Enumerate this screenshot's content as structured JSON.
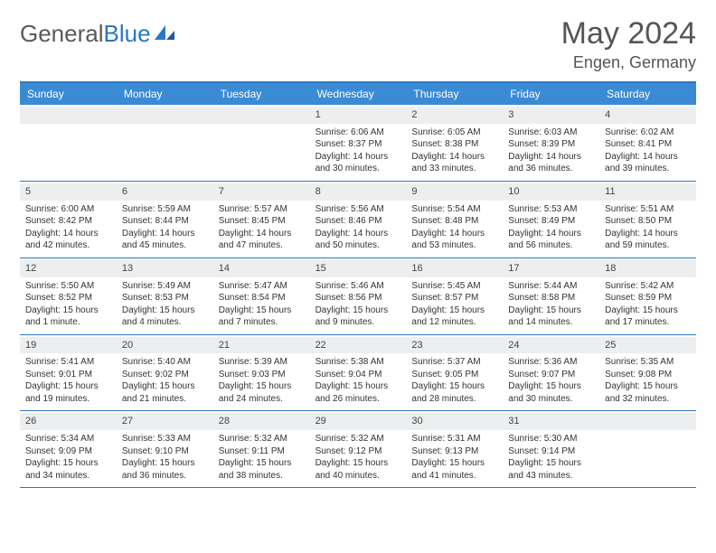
{
  "brand": {
    "part1": "General",
    "part2": "Blue"
  },
  "title": "May 2024",
  "location": "Engen, Germany",
  "colors": {
    "header_bg": "#3b8bd4",
    "header_border": "#2b77c0",
    "daynum_bg": "#eceef0",
    "text": "#333333",
    "brand_gray": "#5a5a5a",
    "brand_blue": "#2b77c0"
  },
  "day_labels": [
    "Sunday",
    "Monday",
    "Tuesday",
    "Wednesday",
    "Thursday",
    "Friday",
    "Saturday"
  ],
  "weeks": [
    [
      {
        "n": "",
        "sr": "",
        "ss": "",
        "dl": ""
      },
      {
        "n": "",
        "sr": "",
        "ss": "",
        "dl": ""
      },
      {
        "n": "",
        "sr": "",
        "ss": "",
        "dl": ""
      },
      {
        "n": "1",
        "sr": "Sunrise: 6:06 AM",
        "ss": "Sunset: 8:37 PM",
        "dl": "Daylight: 14 hours and 30 minutes."
      },
      {
        "n": "2",
        "sr": "Sunrise: 6:05 AM",
        "ss": "Sunset: 8:38 PM",
        "dl": "Daylight: 14 hours and 33 minutes."
      },
      {
        "n": "3",
        "sr": "Sunrise: 6:03 AM",
        "ss": "Sunset: 8:39 PM",
        "dl": "Daylight: 14 hours and 36 minutes."
      },
      {
        "n": "4",
        "sr": "Sunrise: 6:02 AM",
        "ss": "Sunset: 8:41 PM",
        "dl": "Daylight: 14 hours and 39 minutes."
      }
    ],
    [
      {
        "n": "5",
        "sr": "Sunrise: 6:00 AM",
        "ss": "Sunset: 8:42 PM",
        "dl": "Daylight: 14 hours and 42 minutes."
      },
      {
        "n": "6",
        "sr": "Sunrise: 5:59 AM",
        "ss": "Sunset: 8:44 PM",
        "dl": "Daylight: 14 hours and 45 minutes."
      },
      {
        "n": "7",
        "sr": "Sunrise: 5:57 AM",
        "ss": "Sunset: 8:45 PM",
        "dl": "Daylight: 14 hours and 47 minutes."
      },
      {
        "n": "8",
        "sr": "Sunrise: 5:56 AM",
        "ss": "Sunset: 8:46 PM",
        "dl": "Daylight: 14 hours and 50 minutes."
      },
      {
        "n": "9",
        "sr": "Sunrise: 5:54 AM",
        "ss": "Sunset: 8:48 PM",
        "dl": "Daylight: 14 hours and 53 minutes."
      },
      {
        "n": "10",
        "sr": "Sunrise: 5:53 AM",
        "ss": "Sunset: 8:49 PM",
        "dl": "Daylight: 14 hours and 56 minutes."
      },
      {
        "n": "11",
        "sr": "Sunrise: 5:51 AM",
        "ss": "Sunset: 8:50 PM",
        "dl": "Daylight: 14 hours and 59 minutes."
      }
    ],
    [
      {
        "n": "12",
        "sr": "Sunrise: 5:50 AM",
        "ss": "Sunset: 8:52 PM",
        "dl": "Daylight: 15 hours and 1 minute."
      },
      {
        "n": "13",
        "sr": "Sunrise: 5:49 AM",
        "ss": "Sunset: 8:53 PM",
        "dl": "Daylight: 15 hours and 4 minutes."
      },
      {
        "n": "14",
        "sr": "Sunrise: 5:47 AM",
        "ss": "Sunset: 8:54 PM",
        "dl": "Daylight: 15 hours and 7 minutes."
      },
      {
        "n": "15",
        "sr": "Sunrise: 5:46 AM",
        "ss": "Sunset: 8:56 PM",
        "dl": "Daylight: 15 hours and 9 minutes."
      },
      {
        "n": "16",
        "sr": "Sunrise: 5:45 AM",
        "ss": "Sunset: 8:57 PM",
        "dl": "Daylight: 15 hours and 12 minutes."
      },
      {
        "n": "17",
        "sr": "Sunrise: 5:44 AM",
        "ss": "Sunset: 8:58 PM",
        "dl": "Daylight: 15 hours and 14 minutes."
      },
      {
        "n": "18",
        "sr": "Sunrise: 5:42 AM",
        "ss": "Sunset: 8:59 PM",
        "dl": "Daylight: 15 hours and 17 minutes."
      }
    ],
    [
      {
        "n": "19",
        "sr": "Sunrise: 5:41 AM",
        "ss": "Sunset: 9:01 PM",
        "dl": "Daylight: 15 hours and 19 minutes."
      },
      {
        "n": "20",
        "sr": "Sunrise: 5:40 AM",
        "ss": "Sunset: 9:02 PM",
        "dl": "Daylight: 15 hours and 21 minutes."
      },
      {
        "n": "21",
        "sr": "Sunrise: 5:39 AM",
        "ss": "Sunset: 9:03 PM",
        "dl": "Daylight: 15 hours and 24 minutes."
      },
      {
        "n": "22",
        "sr": "Sunrise: 5:38 AM",
        "ss": "Sunset: 9:04 PM",
        "dl": "Daylight: 15 hours and 26 minutes."
      },
      {
        "n": "23",
        "sr": "Sunrise: 5:37 AM",
        "ss": "Sunset: 9:05 PM",
        "dl": "Daylight: 15 hours and 28 minutes."
      },
      {
        "n": "24",
        "sr": "Sunrise: 5:36 AM",
        "ss": "Sunset: 9:07 PM",
        "dl": "Daylight: 15 hours and 30 minutes."
      },
      {
        "n": "25",
        "sr": "Sunrise: 5:35 AM",
        "ss": "Sunset: 9:08 PM",
        "dl": "Daylight: 15 hours and 32 minutes."
      }
    ],
    [
      {
        "n": "26",
        "sr": "Sunrise: 5:34 AM",
        "ss": "Sunset: 9:09 PM",
        "dl": "Daylight: 15 hours and 34 minutes."
      },
      {
        "n": "27",
        "sr": "Sunrise: 5:33 AM",
        "ss": "Sunset: 9:10 PM",
        "dl": "Daylight: 15 hours and 36 minutes."
      },
      {
        "n": "28",
        "sr": "Sunrise: 5:32 AM",
        "ss": "Sunset: 9:11 PM",
        "dl": "Daylight: 15 hours and 38 minutes."
      },
      {
        "n": "29",
        "sr": "Sunrise: 5:32 AM",
        "ss": "Sunset: 9:12 PM",
        "dl": "Daylight: 15 hours and 40 minutes."
      },
      {
        "n": "30",
        "sr": "Sunrise: 5:31 AM",
        "ss": "Sunset: 9:13 PM",
        "dl": "Daylight: 15 hours and 41 minutes."
      },
      {
        "n": "31",
        "sr": "Sunrise: 5:30 AM",
        "ss": "Sunset: 9:14 PM",
        "dl": "Daylight: 15 hours and 43 minutes."
      },
      {
        "n": "",
        "sr": "",
        "ss": "",
        "dl": ""
      }
    ]
  ]
}
